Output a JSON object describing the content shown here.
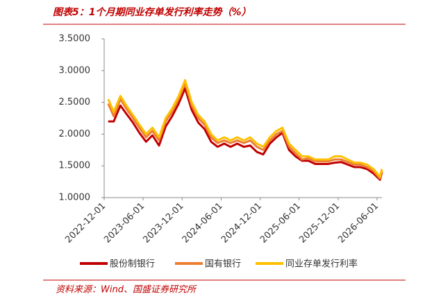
{
  "chart_data": {
    "type": "line",
    "title": "图表5：1个月期同业存单发行利率走势（%）",
    "source": "资料来源：Wind、国盛证券研究所",
    "x": [
      "2022-12-20",
      "2023-01-15",
      "2023-02-15",
      "2023-03-15",
      "2023-04-15",
      "2023-05-15",
      "2023-06-15",
      "2023-07-15",
      "2023-08-15",
      "2023-09-15",
      "2023-10-15",
      "2023-11-15",
      "2023-12-15",
      "2024-01-15",
      "2024-02-15",
      "2024-03-15",
      "2024-04-15",
      "2024-05-15",
      "2024-06-15",
      "2024-07-15",
      "2024-08-15",
      "2024-09-15",
      "2024-10-15",
      "2024-11-15",
      "2024-12-15",
      "2025-01-15",
      "2025-02-15",
      "2025-03-15",
      "2025-04-15",
      "2025-05-15",
      "2025-06-15",
      "2025-07-15",
      "2025-08-15",
      "2025-09-15",
      "2025-10-15",
      "2025-11-15",
      "2025-12-15",
      "2026-01-15",
      "2026-02-15",
      "2026-03-15",
      "2026-04-15",
      "2026-05-15",
      "2026-06-15",
      "2026-06-24"
    ],
    "series": [
      {
        "name": "股份制银行",
        "color": "#c00000",
        "values": [
          2.2,
          2.2,
          2.45,
          2.32,
          2.18,
          2.02,
          1.88,
          1.98,
          1.82,
          2.12,
          2.28,
          2.48,
          2.72,
          2.38,
          2.18,
          2.08,
          1.88,
          1.8,
          1.85,
          1.8,
          1.85,
          1.8,
          1.82,
          1.72,
          1.68,
          1.85,
          1.95,
          2.02,
          1.75,
          1.65,
          1.58,
          1.58,
          1.53,
          1.53,
          1.53,
          1.55,
          1.56,
          1.52,
          1.48,
          1.48,
          1.45,
          1.38,
          1.28,
          1.4
        ]
      },
      {
        "name": "国有银行",
        "color": "#ed7d31",
        "values": [
          2.48,
          2.28,
          2.55,
          2.4,
          2.25,
          2.1,
          1.95,
          2.05,
          1.9,
          2.2,
          2.35,
          2.55,
          2.8,
          2.45,
          2.25,
          2.15,
          1.95,
          1.86,
          1.9,
          1.86,
          1.9,
          1.86,
          1.9,
          1.8,
          1.75,
          1.9,
          2.0,
          2.05,
          1.8,
          1.7,
          1.6,
          1.62,
          1.57,
          1.57,
          1.57,
          1.6,
          1.6,
          1.56,
          1.52,
          1.52,
          1.48,
          1.42,
          1.3,
          1.42
        ]
      },
      {
        "name": "同业存单发行利率",
        "color": "#ffc000",
        "values": [
          2.55,
          2.35,
          2.6,
          2.45,
          2.3,
          2.15,
          2.0,
          2.1,
          1.95,
          2.25,
          2.4,
          2.6,
          2.85,
          2.5,
          2.3,
          2.2,
          2.0,
          1.9,
          1.95,
          1.9,
          1.95,
          1.9,
          1.95,
          1.85,
          1.8,
          1.95,
          2.05,
          2.1,
          1.85,
          1.75,
          1.65,
          1.65,
          1.6,
          1.6,
          1.6,
          1.65,
          1.65,
          1.6,
          1.55,
          1.55,
          1.52,
          1.45,
          1.33,
          1.45
        ]
      }
    ],
    "xlim": [
      "2022-12-01",
      "2026-06-24"
    ],
    "xticks": [
      "2022-12-01",
      "2023-06-01",
      "2023-12-01",
      "2024-06-01",
      "2024-12-01",
      "2025-06-01",
      "2025-12-01",
      "2026-06-01"
    ],
    "ylim": [
      1,
      3.5
    ],
    "yticks": [
      {
        "value": 1,
        "label": "1.0000"
      },
      {
        "value": 1.5,
        "label": "1.5000"
      },
      {
        "value": 2,
        "label": "2.0000"
      },
      {
        "value": 2.5,
        "label": "2.5000"
      },
      {
        "value": 3,
        "label": "3.0000"
      },
      {
        "value": 3.5,
        "label": "3.5000"
      }
    ],
    "grid": false,
    "legend": "bottom"
  }
}
